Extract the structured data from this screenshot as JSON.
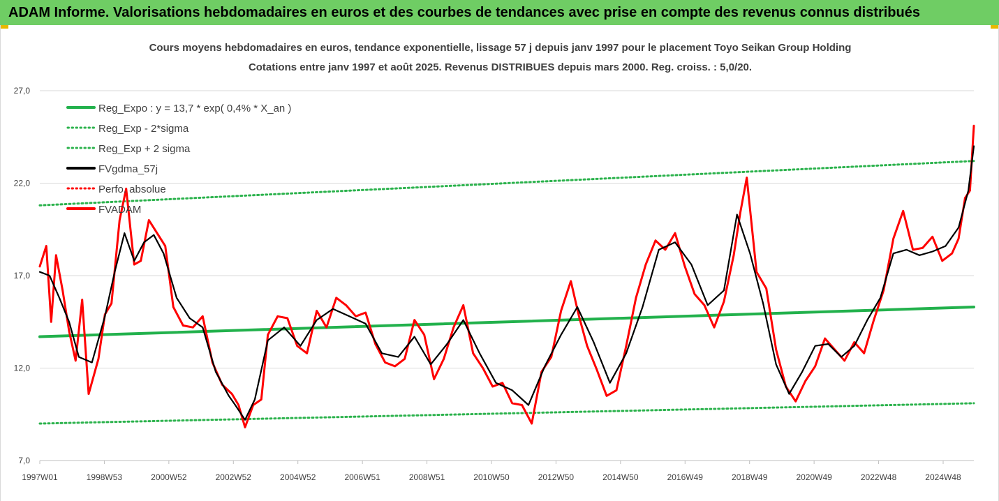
{
  "banner": {
    "title": "ADAM Informe. Valorisations hebdomadaires en euros et des courbes de tendances avec prise en compte des revenus connus distribués"
  },
  "colors": {
    "banner_bg": "#6fcd64",
    "trend": "#22b14c",
    "band": "#2bb24c",
    "smoothed": "#000000",
    "price": "#ff0000",
    "grid": "#d9d9d9"
  },
  "chart_data": {
    "type": "line",
    "title": "Cours moyens hebdomadaires en euros, tendance exponentielle, lissage 57 j depuis janv 1997 pour le placement Toyo Seikan Group Holding",
    "subtitle": "Cotations entre janv 1997 et août 2025.  Revenus DISTRIBUES depuis mars 2000. Reg. croiss. : 5,0/20.",
    "x_ticks": [
      "1997W01",
      "1998W53",
      "2000W52",
      "2002W52",
      "2004W52",
      "2006W51",
      "2008W51",
      "2010W50",
      "2012W50",
      "2014W50",
      "2016W49",
      "2018W49",
      "2020W49",
      "2022W48",
      "2024W48"
    ],
    "y_ticks": [
      "7,0",
      "12,0",
      "17,0",
      "22,0",
      "27,0"
    ],
    "ylim": [
      7,
      27
    ],
    "xlim": [
      1997.0,
      2025.67
    ],
    "grid": "horizontal",
    "legend_position": "top-left",
    "legend": [
      {
        "label": "Reg_Expo : y = 13,7 * exp( 0,4% *  X_an )",
        "style": "solid",
        "color": "#22b14c"
      },
      {
        "label": "Reg_Exp - 2*sigma",
        "style": "dotted",
        "color": "#2bb24c"
      },
      {
        "label": "Reg_Exp + 2 sigma",
        "style": "dotted",
        "color": "#2bb24c"
      },
      {
        "label": "FVgdma_57j",
        "style": "solid",
        "color": "#000000"
      },
      {
        "label": "Perfo. absolue",
        "style": "dotted",
        "color": "#ff0000"
      },
      {
        "label": "FVADAM",
        "style": "solid",
        "color": "#ff0000"
      }
    ],
    "series": [
      {
        "name": "Reg_Expo : y = 13,7 * exp( 0,4% *  X_an )",
        "x": [
          1997.0,
          2025.67
        ],
        "values": [
          13.7,
          15.3
        ]
      },
      {
        "name": "Reg_Exp - 2*sigma",
        "x": [
          1997.0,
          2025.67
        ],
        "values": [
          9.0,
          10.1
        ]
      },
      {
        "name": "Reg_Exp + 2 sigma",
        "x": [
          1997.0,
          2025.67
        ],
        "values": [
          20.8,
          23.2
        ]
      },
      {
        "name": "FVgdma_57j",
        "x": [
          1997.0,
          1997.3,
          1997.6,
          1997.9,
          1998.2,
          1998.6,
          1999.0,
          1999.3,
          1999.6,
          1999.9,
          2000.2,
          2000.5,
          2000.8,
          2001.2,
          2001.6,
          2002.0,
          2002.4,
          2002.8,
          2003.0,
          2003.3,
          2003.6,
          2004.0,
          2004.5,
          2005.0,
          2005.5,
          2006.0,
          2006.5,
          2007.0,
          2007.5,
          2008.0,
          2008.5,
          2009.0,
          2009.5,
          2010.0,
          2010.5,
          2011.0,
          2011.5,
          2012.0,
          2012.5,
          2013.0,
          2013.5,
          2014.0,
          2014.5,
          2015.0,
          2015.5,
          2016.0,
          2016.5,
          2017.0,
          2017.5,
          2018.0,
          2018.4,
          2018.8,
          2019.2,
          2019.6,
          2020.0,
          2020.4,
          2020.8,
          2021.2,
          2021.6,
          2022.0,
          2022.4,
          2022.8,
          2023.2,
          2023.6,
          2024.0,
          2024.4,
          2024.8,
          2025.2,
          2025.5,
          2025.67
        ],
        "values": [
          17.2,
          17.0,
          15.8,
          14.5,
          12.6,
          12.3,
          14.8,
          17.2,
          19.3,
          17.8,
          18.8,
          19.2,
          18.2,
          15.8,
          14.7,
          14.2,
          11.8,
          10.5,
          10.0,
          9.2,
          10.3,
          13.5,
          14.2,
          13.2,
          14.6,
          15.2,
          14.8,
          14.4,
          12.8,
          12.6,
          13.7,
          12.2,
          13.3,
          14.6,
          12.8,
          11.2,
          10.8,
          10.0,
          12.1,
          13.8,
          15.3,
          13.4,
          11.2,
          12.8,
          15.3,
          18.4,
          18.8,
          17.6,
          15.4,
          16.2,
          20.3,
          18.2,
          15.5,
          12.2,
          10.6,
          11.8,
          13.2,
          13.3,
          12.6,
          13.2,
          14.6,
          15.8,
          18.2,
          18.4,
          18.1,
          18.3,
          18.6,
          19.6,
          21.6,
          24.0
        ]
      },
      {
        "name": "FVADAM",
        "x": [
          1997.0,
          1997.2,
          1997.35,
          1997.5,
          1997.7,
          1997.9,
          1998.1,
          1998.3,
          1998.5,
          1998.8,
          1999.0,
          1999.2,
          1999.45,
          1999.65,
          1999.9,
          2000.1,
          2000.35,
          2000.6,
          2000.85,
          2001.1,
          2001.4,
          2001.7,
          2002.0,
          2002.3,
          2002.6,
          2002.9,
          2003.1,
          2003.3,
          2003.55,
          2003.8,
          2004.0,
          2004.3,
          2004.6,
          2004.9,
          2005.2,
          2005.5,
          2005.8,
          2006.1,
          2006.4,
          2006.7,
          2007.0,
          2007.3,
          2007.6,
          2007.9,
          2008.2,
          2008.5,
          2008.8,
          2009.1,
          2009.4,
          2009.7,
          2010.0,
          2010.3,
          2010.6,
          2010.9,
          2011.2,
          2011.5,
          2011.8,
          2012.1,
          2012.4,
          2012.7,
          2013.0,
          2013.3,
          2013.55,
          2013.8,
          2014.1,
          2014.4,
          2014.7,
          2015.0,
          2015.3,
          2015.6,
          2015.9,
          2016.2,
          2016.5,
          2016.8,
          2017.1,
          2017.4,
          2017.7,
          2018.0,
          2018.3,
          2018.5,
          2018.7,
          2019.0,
          2019.3,
          2019.6,
          2019.9,
          2020.2,
          2020.5,
          2020.8,
          2021.1,
          2021.4,
          2021.7,
          2022.0,
          2022.3,
          2022.6,
          2022.9,
          2023.2,
          2023.5,
          2023.8,
          2024.1,
          2024.4,
          2024.7,
          2025.0,
          2025.2,
          2025.4,
          2025.55,
          2025.67
        ],
        "values": [
          17.5,
          18.6,
          14.5,
          18.1,
          16.2,
          14.0,
          12.4,
          15.7,
          10.6,
          12.5,
          14.9,
          15.5,
          20.0,
          21.7,
          17.6,
          17.8,
          20.0,
          19.3,
          18.6,
          15.3,
          14.3,
          14.2,
          14.8,
          12.3,
          11.1,
          10.6,
          10.0,
          8.8,
          10.0,
          10.3,
          13.8,
          14.8,
          14.7,
          13.2,
          12.8,
          15.1,
          14.2,
          15.8,
          15.4,
          14.8,
          15.0,
          13.3,
          12.3,
          12.1,
          12.5,
          14.6,
          13.8,
          11.4,
          12.5,
          14.2,
          15.4,
          12.8,
          12.0,
          11.0,
          11.2,
          10.1,
          10.0,
          9.0,
          11.8,
          12.6,
          15.1,
          16.7,
          14.8,
          13.2,
          11.9,
          10.5,
          10.8,
          13.2,
          15.8,
          17.6,
          18.9,
          18.4,
          19.3,
          17.5,
          16.0,
          15.4,
          14.2,
          15.6,
          18.1,
          20.4,
          22.3,
          17.2,
          16.3,
          13.0,
          11.0,
          10.2,
          11.3,
          12.1,
          13.6,
          13.0,
          12.4,
          13.4,
          12.8,
          14.6,
          16.2,
          19.0,
          20.5,
          18.4,
          18.5,
          19.1,
          17.8,
          18.2,
          19.0,
          21.2,
          21.6,
          25.1
        ]
      }
    ]
  }
}
